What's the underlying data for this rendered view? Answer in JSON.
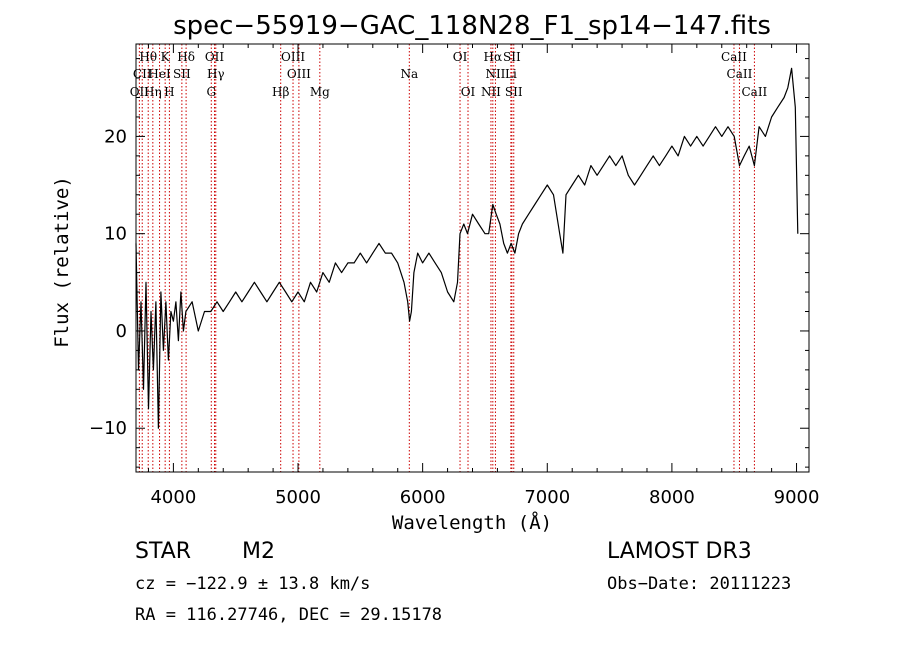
{
  "chart_data": {
    "type": "line",
    "title": "spec−55919−GAC_118N28_F1_sp14−147.fits",
    "xlabel": "Wavelength (Å)",
    "ylabel": "Flux (relative)",
    "xlim": [
      3700,
      9100
    ],
    "ylim": [
      -14.5,
      29.5
    ],
    "x_ticks": [
      4000,
      5000,
      6000,
      7000,
      8000,
      9000
    ],
    "y_ticks": [
      -10,
      0,
      10,
      20
    ],
    "x_tick_labels": [
      "4000",
      "5000",
      "6000",
      "7000",
      "8000",
      "9000"
    ],
    "y_tick_labels": [
      "−10",
      "0",
      "10",
      "20"
    ],
    "grid": false,
    "line_color": "#000000",
    "marker_color": "#cc0000",
    "series": [
      {
        "x": [
          3700,
          3720,
          3740,
          3760,
          3780,
          3800,
          3820,
          3840,
          3860,
          3880,
          3900,
          3920,
          3940,
          3960,
          3980,
          4000,
          4020,
          4040,
          4060,
          4080,
          4100,
          4150,
          4200,
          4250,
          4300,
          4350,
          4400,
          4450,
          4500,
          4550,
          4600,
          4650,
          4700,
          4750,
          4800,
          4850,
          4900,
          4950,
          5000,
          5050,
          5100,
          5150,
          5200,
          5250,
          5300,
          5350,
          5400,
          5450,
          5500,
          5550,
          5600,
          5650,
          5700,
          5750,
          5800,
          5850,
          5880,
          5895,
          5910,
          5930,
          5960,
          6000,
          6050,
          6100,
          6150,
          6200,
          6250,
          6280,
          6300,
          6330,
          6360,
          6400,
          6450,
          6500,
          6530,
          6563,
          6590,
          6620,
          6650,
          6680,
          6710,
          6740,
          6770,
          6800,
          6850,
          6900,
          6950,
          7000,
          7050,
          7100,
          7125,
          7150,
          7200,
          7250,
          7300,
          7350,
          7400,
          7450,
          7500,
          7550,
          7600,
          7650,
          7700,
          7750,
          7800,
          7850,
          7900,
          7950,
          8000,
          8050,
          8100,
          8150,
          8200,
          8250,
          8300,
          8350,
          8400,
          8450,
          8500,
          8542,
          8580,
          8620,
          8662,
          8700,
          8750,
          8800,
          8850,
          8900,
          8930,
          8960,
          8990,
          9010
        ],
        "y": [
          9,
          -4,
          3,
          -6,
          5,
          -8,
          2,
          -4,
          3,
          -10,
          4,
          -2,
          3,
          -3,
          2,
          1,
          3,
          -1,
          4,
          0,
          2,
          3,
          0,
          2,
          2,
          3,
          2,
          3,
          4,
          3,
          4,
          5,
          4,
          3,
          4,
          5,
          4,
          3,
          4,
          3,
          5,
          4,
          6,
          5,
          7,
          6,
          7,
          7,
          8,
          7,
          8,
          9,
          8,
          8,
          7,
          5,
          3,
          1,
          2,
          6,
          8,
          7,
          8,
          7,
          6,
          4,
          3,
          5,
          10,
          11,
          10,
          12,
          11,
          10,
          10,
          13,
          12,
          11,
          9,
          8,
          9,
          8,
          10,
          11,
          12,
          13,
          14,
          15,
          14,
          10,
          8,
          14,
          15,
          16,
          15,
          17,
          16,
          17,
          18,
          17,
          18,
          16,
          15,
          16,
          17,
          18,
          17,
          18,
          19,
          18,
          20,
          19,
          20,
          19,
          20,
          21,
          20,
          21,
          20,
          17,
          18,
          19,
          17,
          21,
          20,
          22,
          23,
          24,
          25,
          27,
          23,
          10
        ]
      }
    ],
    "spectral_lines": [
      {
        "label": "Hθ",
        "x": 3798,
        "row": 1
      },
      {
        "label": "K",
        "x": 3934,
        "row": 1
      },
      {
        "label": "Hδ",
        "x": 4102,
        "row": 1
      },
      {
        "label": "OII",
        "x": 4330,
        "row": 1
      },
      {
        "label": "OIII",
        "x": 4960,
        "row": 1
      },
      {
        "label": "OI",
        "x": 6300,
        "row": 1
      },
      {
        "label": "Hα",
        "x": 6563,
        "row": 1
      },
      {
        "label": "SII",
        "x": 6716,
        "row": 1
      },
      {
        "label": "CaII",
        "x": 8498,
        "row": 1
      },
      {
        "label": "CII",
        "x": 3750,
        "row": 2
      },
      {
        "label": "HeI",
        "x": 3889,
        "row": 2
      },
      {
        "label": "SII",
        "x": 4068,
        "row": 2
      },
      {
        "label": "Hγ",
        "x": 4340,
        "row": 2
      },
      {
        "label": "OIII",
        "x": 5007,
        "row": 2
      },
      {
        "label": "Na",
        "x": 5893,
        "row": 2
      },
      {
        "label": "NII",
        "x": 6584,
        "row": 2
      },
      {
        "label": "Li",
        "x": 6708,
        "row": 2
      },
      {
        "label": "CaII",
        "x": 8542,
        "row": 2
      },
      {
        "label": "OII",
        "x": 3727,
        "row": 3
      },
      {
        "label": "Hη",
        "x": 3835,
        "row": 3
      },
      {
        "label": "H",
        "x": 3968,
        "row": 3
      },
      {
        "label": "G",
        "x": 4304,
        "row": 3
      },
      {
        "label": "Hβ",
        "x": 4861,
        "row": 3
      },
      {
        "label": "Mg",
        "x": 5175,
        "row": 3
      },
      {
        "label": "OI",
        "x": 6364,
        "row": 3
      },
      {
        "label": "NII",
        "x": 6548,
        "row": 3
      },
      {
        "label": "SII",
        "x": 6731,
        "row": 3
      },
      {
        "label": "CaII",
        "x": 8662,
        "row": 3
      }
    ]
  },
  "info": {
    "class": "STAR",
    "subclass": "M2",
    "survey": "LAMOST DR3",
    "cz": "cz = −122.9 ± 13.8 km/s",
    "obs_date": "Obs−Date: 20111223",
    "radec": "RA = 116.27746, DEC =  29.15178"
  }
}
